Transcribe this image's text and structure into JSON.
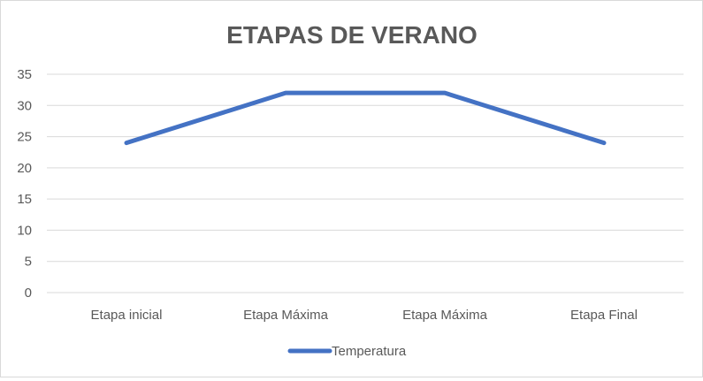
{
  "chart_data": {
    "type": "line",
    "title": "ETAPAS DE VERANO",
    "xlabel": "",
    "ylabel": "",
    "categories": [
      "Etapa inicial",
      "Etapa Máxima",
      "Etapa Máxima",
      "Etapa Final"
    ],
    "series": [
      {
        "name": "Temperatura",
        "values": [
          24,
          32,
          32,
          24
        ],
        "color": "#4472C4"
      }
    ],
    "ylim": [
      0,
      35
    ],
    "yticks": [
      "0",
      "5",
      "10",
      "15",
      "20",
      "25",
      "30",
      "35"
    ],
    "grid": true,
    "legend": "bottom"
  }
}
